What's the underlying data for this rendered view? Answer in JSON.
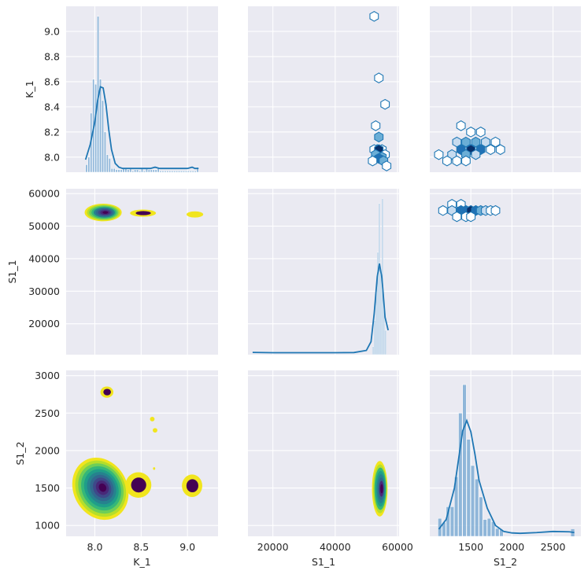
{
  "chart_data": {
    "type": "pairplot",
    "variables": [
      "K_1",
      "S1_1",
      "S1_2"
    ],
    "xlabels": [
      "K_1",
      "S1_1",
      "S1_2"
    ],
    "ylabels": [
      "K_1",
      "S1_1",
      "S1_2"
    ],
    "colors": {
      "face": "#eaeaf2",
      "grid": "#ffffff",
      "hist": "#7fadd5",
      "line": "#1f77b4",
      "hex_edge": "#1f77b4",
      "hex_dark": "#08306b"
    },
    "kde_colormap": [
      "#f1e51d",
      "#b5de2b",
      "#6ece58",
      "#35b779",
      "#1f9e89",
      "#26828e",
      "#31688e",
      "#3e4989",
      "#482878",
      "#440154"
    ],
    "axes": {
      "K_1": {
        "range": [
          7.69,
          9.33
        ],
        "ticks": [
          8.0,
          8.5,
          9.0
        ],
        "tick_labels": [
          "8.0",
          "8.5",
          "9.0"
        ],
        "yrange": [
          7.88,
          9.2
        ],
        "yticks": [
          8.0,
          8.2,
          8.4,
          8.6,
          8.8,
          9.0
        ],
        "ytick_labels": [
          "8.0",
          "8.2",
          "8.4",
          "8.6",
          "8.8",
          "9.0"
        ]
      },
      "S1_1": {
        "range": [
          12000,
          60500
        ],
        "ticks": [
          20000,
          40000,
          60000
        ],
        "tick_labels": [
          "20000",
          "40000",
          "60000"
        ],
        "yrange": [
          10500,
          61500
        ],
        "yticks": [
          20000,
          30000,
          40000,
          50000,
          60000
        ],
        "ytick_labels": [
          "20000",
          "30000",
          "40000",
          "50000",
          "60000"
        ]
      },
      "S1_2": {
        "range": [
          1000,
          2840
        ],
        "ticks": [
          1500,
          2000,
          2500
        ],
        "tick_labels": [
          "1500",
          "2000",
          "2500"
        ],
        "yrange": [
          855,
          3070
        ],
        "yticks": [
          1000,
          1500,
          2000,
          2500,
          3000
        ],
        "ytick_labels": [
          "1000",
          "1500",
          "2000",
          "2500",
          "3000"
        ]
      }
    },
    "diag": {
      "K_1": {
        "hist_edges": [
          7.9,
          7.925,
          7.95,
          7.975,
          8.0,
          8.025,
          8.05,
          8.075,
          8.1,
          8.125,
          8.15,
          8.175,
          8.2,
          8.225,
          8.25,
          8.275,
          8.3,
          8.325,
          8.35,
          8.375,
          8.4,
          8.425,
          8.45,
          8.475,
          8.5,
          8.525,
          8.55,
          8.575,
          8.6,
          8.625,
          8.65,
          8.675,
          8.7,
          8.725,
          8.75,
          8.775,
          8.8,
          8.825,
          8.85,
          8.875,
          8.9,
          8.925,
          8.95,
          8.975,
          9.0,
          9.025,
          9.05,
          9.075,
          9.1,
          9.125
        ],
        "hist_tops": [
          7.94,
          8.0,
          8.35,
          8.62,
          8.58,
          9.12,
          8.62,
          8.45,
          8.2,
          8.02,
          7.99,
          7.91,
          7.91,
          7.9,
          7.9,
          7.9,
          7.91,
          7.91,
          7.9,
          7.91,
          7.89,
          7.9,
          7.9,
          7.89,
          7.91,
          7.89,
          7.91,
          7.9,
          7.9,
          7.9,
          7.9,
          7.92,
          7.89,
          7.89,
          7.89,
          7.89,
          7.89,
          7.89,
          7.89,
          7.89,
          7.89,
          7.89,
          7.89,
          7.89,
          7.89,
          7.89,
          7.89,
          7.89,
          7.92
        ],
        "kde_x": [
          7.9,
          7.95,
          8.0,
          8.03,
          8.06,
          8.09,
          8.12,
          8.15,
          8.18,
          8.22,
          8.26,
          8.3,
          8.4,
          8.5,
          8.6,
          8.65,
          8.7,
          8.8,
          8.9,
          9.0,
          9.05,
          9.08,
          9.12
        ],
        "kde_y": [
          7.98,
          8.1,
          8.28,
          8.45,
          8.56,
          8.55,
          8.42,
          8.22,
          8.06,
          7.95,
          7.92,
          7.91,
          7.91,
          7.91,
          7.91,
          7.92,
          7.91,
          7.91,
          7.91,
          7.91,
          7.92,
          7.91,
          7.91
        ]
      },
      "S1_1": {
        "hist_edges": [
          52000,
          52500,
          53000,
          53500,
          54000,
          54500,
          55000,
          55500,
          56000,
          56500
        ],
        "hist_tops": [
          13000,
          21000,
          30000,
          42000,
          57000,
          36000,
          58500,
          26000,
          18000
        ],
        "kde_x": [
          13500,
          20000,
          30000,
          40000,
          46000,
          50000,
          51500,
          52500,
          53500,
          54200,
          55000,
          56000,
          57000
        ],
        "kde_y": [
          11200,
          11100,
          11100,
          11100,
          11150,
          11800,
          14500,
          23000,
          34500,
          38500,
          34000,
          22000,
          18000
        ]
      },
      "S1_2": {
        "hist_edges": [
          1100,
          1150,
          1200,
          1250,
          1300,
          1350,
          1400,
          1450,
          1500,
          1550,
          1600,
          1650,
          1700,
          1750,
          1800,
          1850,
          1900
        ],
        "hist_tops": [
          1095,
          1040,
          1250,
          1250,
          1650,
          2500,
          2880,
          2150,
          1800,
          1620,
          1380,
          1080,
          1095,
          1050,
          960,
          945
        ],
        "extra_bins": [
          {
            "x0": 2720,
            "x1": 2760,
            "top": 950
          }
        ],
        "kde_x": [
          1110,
          1200,
          1300,
          1400,
          1450,
          1500,
          1550,
          1600,
          1700,
          1800,
          1900,
          2000,
          2100,
          2300,
          2500,
          2700,
          2760
        ],
        "kde_y": [
          950,
          1080,
          1500,
          2260,
          2400,
          2250,
          1950,
          1600,
          1230,
          1000,
          920,
          900,
          895,
          905,
          920,
          915,
          905
        ]
      }
    },
    "offdiag_upper": {
      "S1_1__K_1": {
        "x": "S1_1",
        "y": "K_1",
        "hexes": [
          [
            52500,
            9.12,
            0
          ],
          [
            54000,
            8.63,
            0
          ],
          [
            56000,
            8.42,
            0
          ],
          [
            53000,
            8.25,
            0
          ],
          [
            54000,
            8.16,
            2
          ],
          [
            53500,
            8.06,
            0
          ],
          [
            55000,
            8.06,
            0
          ],
          [
            52500,
            8.06,
            0
          ],
          [
            54000,
            8.06,
            4
          ],
          [
            56000,
            8.02,
            0
          ],
          [
            53000,
            8.02,
            2
          ],
          [
            55000,
            8.0,
            2
          ],
          [
            54000,
            7.99,
            3
          ],
          [
            52000,
            7.97,
            0
          ],
          [
            55500,
            7.97,
            2
          ],
          [
            56500,
            7.93,
            0
          ]
        ]
      },
      "S1_2__K_1": {
        "x": "S1_2",
        "y": "K_1",
        "hexes": [
          [
            1380,
            8.25,
            0
          ],
          [
            1500,
            8.2,
            0
          ],
          [
            1620,
            8.2,
            0
          ],
          [
            1330,
            8.12,
            1
          ],
          [
            1440,
            8.12,
            2
          ],
          [
            1560,
            8.12,
            2
          ],
          [
            1680,
            8.12,
            1
          ],
          [
            1800,
            8.12,
            0
          ],
          [
            1380,
            8.06,
            3
          ],
          [
            1500,
            8.06,
            4
          ],
          [
            1620,
            8.06,
            3
          ],
          [
            1740,
            8.06,
            0
          ],
          [
            1860,
            8.06,
            0
          ],
          [
            1110,
            8.02,
            0
          ],
          [
            1270,
            8.02,
            1
          ],
          [
            1440,
            8.02,
            2
          ],
          [
            1560,
            8.02,
            1
          ],
          [
            1210,
            7.97,
            0
          ],
          [
            1330,
            7.97,
            0
          ],
          [
            1440,
            7.97,
            0
          ]
        ]
      },
      "S1_2__S1_1": {
        "x": "S1_2",
        "y": "S1_1",
        "hexes": [
          [
            1270,
            56700,
            0
          ],
          [
            1380,
            56700,
            0
          ],
          [
            1160,
            54800,
            0
          ],
          [
            1270,
            54800,
            1
          ],
          [
            1380,
            54800,
            3
          ],
          [
            1440,
            54800,
            3
          ],
          [
            1500,
            54800,
            4
          ],
          [
            1560,
            54800,
            3
          ],
          [
            1620,
            54800,
            2
          ],
          [
            1680,
            54800,
            1
          ],
          [
            1740,
            54800,
            0
          ],
          [
            1800,
            54800,
            0
          ],
          [
            1330,
            52900,
            0
          ],
          [
            1440,
            52900,
            0
          ],
          [
            1500,
            52900,
            0
          ]
        ]
      }
    },
    "offdiag_lower": {
      "K_1__S1_1": {
        "x": "K_1",
        "y": "S1_1",
        "blobs": [
          {
            "cx": 8.09,
            "cy": 54200,
            "rx": 0.2,
            "ry": 2700,
            "levels": 9,
            "rot": 0
          },
          {
            "cx": 8.52,
            "cy": 54000,
            "rx": 0.14,
            "ry": 1100,
            "levels": 2,
            "rot": 0
          },
          {
            "cx": 9.08,
            "cy": 53600,
            "rx": 0.09,
            "ry": 950,
            "levels": 1,
            "rot": 0
          }
        ]
      },
      "K_1__S1_2": {
        "x": "K_1",
        "y": "S1_2",
        "blobs": [
          {
            "cx": 8.06,
            "cy": 1490,
            "rx": 0.29,
            "ry": 430,
            "levels": 10,
            "rot": -28
          },
          {
            "cx": 8.13,
            "cy": 2780,
            "rx": 0.07,
            "ry": 75,
            "levels": 2,
            "rot": 0
          },
          {
            "cx": 8.47,
            "cy": 1540,
            "rx": 0.14,
            "ry": 170,
            "levels": 2,
            "rot": 0
          },
          {
            "cx": 9.05,
            "cy": 1530,
            "rx": 0.11,
            "ry": 150,
            "levels": 2,
            "rot": 0
          },
          {
            "cx": 8.62,
            "cy": 2420,
            "rx": 0.025,
            "ry": 30,
            "levels": 1,
            "rot": 0
          },
          {
            "cx": 8.65,
            "cy": 2270,
            "rx": 0.025,
            "ry": 30,
            "levels": 1,
            "rot": 0
          },
          {
            "cx": 8.64,
            "cy": 1760,
            "rx": 0.012,
            "ry": 18,
            "levels": 1,
            "rot": 0
          }
        ]
      },
      "S1_1__S1_2": {
        "x": "S1_1",
        "y": "S1_2",
        "blobs": [
          {
            "cx": 54300,
            "cy": 1490,
            "rx": 2500,
            "ry": 370,
            "levels": 8,
            "rot": 0
          }
        ]
      }
    }
  }
}
